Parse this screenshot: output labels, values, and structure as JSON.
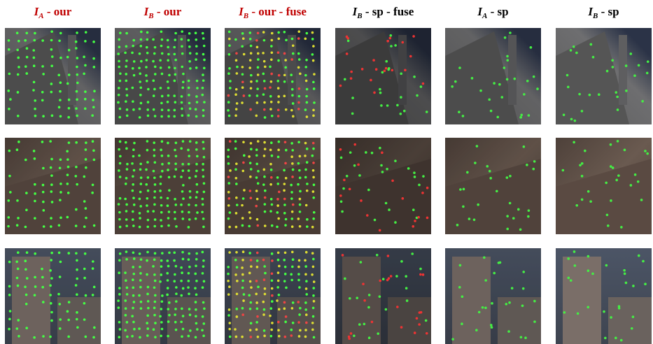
{
  "columns": [
    {
      "title": {
        "symbol": "I",
        "subscript": "A",
        "suffix": " - our"
      },
      "color": "#c00000"
    },
    {
      "title": {
        "symbol": "I",
        "subscript": "B",
        "suffix": " - our"
      },
      "color": "#c00000"
    },
    {
      "title": {
        "symbol": "I",
        "subscript": "B",
        "suffix": " - our - fuse"
      },
      "color": "#c00000"
    },
    {
      "title": {
        "symbol": "I",
        "subscript": "B",
        "suffix": " - sp - fuse"
      },
      "color": "#000000"
    },
    {
      "title": {
        "symbol": "I",
        "subscript": "A",
        "suffix": " - sp"
      },
      "color": "#000000"
    },
    {
      "title": {
        "symbol": "I",
        "subscript": "B",
        "suffix": " - sp"
      },
      "color": "#000000"
    }
  ]
}
